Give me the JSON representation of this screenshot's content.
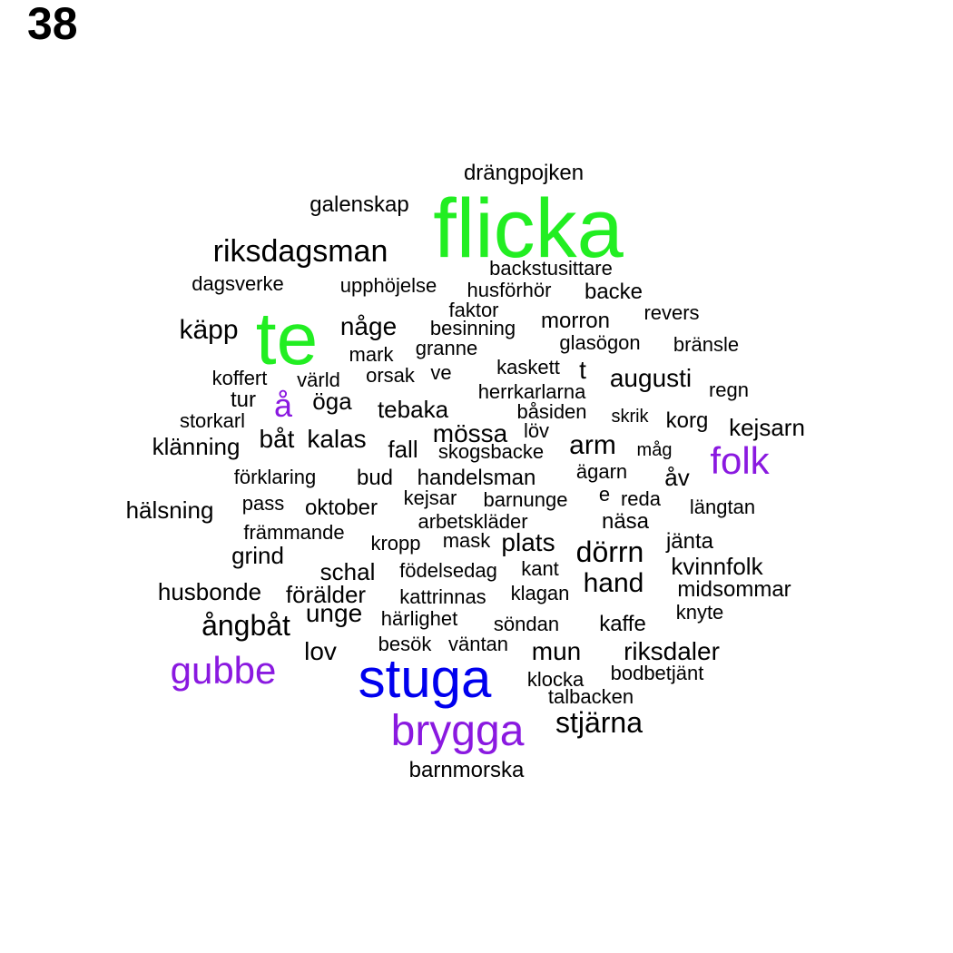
{
  "page_number": "38",
  "colors": {
    "green": "#22ee22",
    "blue": "#0000ee",
    "purple": "#8a19e0",
    "black": "#000000"
  },
  "words": [
    {
      "text": "flicka",
      "color": "green"
    },
    {
      "text": "te",
      "color": "green"
    },
    {
      "text": "stuga",
      "color": "blue"
    },
    {
      "text": "brygga",
      "color": "purple"
    },
    {
      "text": "gubbe",
      "color": "purple"
    },
    {
      "text": "folk",
      "color": "purple"
    },
    {
      "text": "å",
      "color": "purple"
    },
    {
      "text": "drängpojken",
      "color": "black"
    },
    {
      "text": "galenskap",
      "color": "black"
    },
    {
      "text": "riksdagsman",
      "color": "black"
    },
    {
      "text": "backstusittare",
      "color": "black"
    },
    {
      "text": "dagsverke",
      "color": "black"
    },
    {
      "text": "upphöjelse",
      "color": "black"
    },
    {
      "text": "husförhör",
      "color": "black"
    },
    {
      "text": "backe",
      "color": "black"
    },
    {
      "text": "faktor",
      "color": "black"
    },
    {
      "text": "revers",
      "color": "black"
    },
    {
      "text": "käpp",
      "color": "black"
    },
    {
      "text": "någe",
      "color": "black"
    },
    {
      "text": "besinning",
      "color": "black"
    },
    {
      "text": "morron",
      "color": "black"
    },
    {
      "text": "mark",
      "color": "black"
    },
    {
      "text": "granne",
      "color": "black"
    },
    {
      "text": "glasögon",
      "color": "black"
    },
    {
      "text": "bränsle",
      "color": "black"
    },
    {
      "text": "koffert",
      "color": "black"
    },
    {
      "text": "värld",
      "color": "black"
    },
    {
      "text": "orsak",
      "color": "black"
    },
    {
      "text": "ve",
      "color": "black"
    },
    {
      "text": "kaskett",
      "color": "black"
    },
    {
      "text": "t",
      "color": "black"
    },
    {
      "text": "augusti",
      "color": "black"
    },
    {
      "text": "tur",
      "color": "black"
    },
    {
      "text": "öga",
      "color": "black"
    },
    {
      "text": "herrkarlarna",
      "color": "black"
    },
    {
      "text": "regn",
      "color": "black"
    },
    {
      "text": "tebaka",
      "color": "black"
    },
    {
      "text": "båsiden",
      "color": "black"
    },
    {
      "text": "skrik",
      "color": "black"
    },
    {
      "text": "korg",
      "color": "black"
    },
    {
      "text": "storkarl",
      "color": "black"
    },
    {
      "text": "kejsarn",
      "color": "black"
    },
    {
      "text": "mössa",
      "color": "black"
    },
    {
      "text": "löv",
      "color": "black"
    },
    {
      "text": "båt",
      "color": "black"
    },
    {
      "text": "kalas",
      "color": "black"
    },
    {
      "text": "klänning",
      "color": "black"
    },
    {
      "text": "arm",
      "color": "black"
    },
    {
      "text": "fall",
      "color": "black"
    },
    {
      "text": "skogsbacke",
      "color": "black"
    },
    {
      "text": "måg",
      "color": "black"
    },
    {
      "text": "förklaring",
      "color": "black"
    },
    {
      "text": "bud",
      "color": "black"
    },
    {
      "text": "handelsman",
      "color": "black"
    },
    {
      "text": "ägarn",
      "color": "black"
    },
    {
      "text": "åv",
      "color": "black"
    },
    {
      "text": "hälsning",
      "color": "black"
    },
    {
      "text": "pass",
      "color": "black"
    },
    {
      "text": "oktober",
      "color": "black"
    },
    {
      "text": "kejsar",
      "color": "black"
    },
    {
      "text": "barnunge",
      "color": "black"
    },
    {
      "text": "e",
      "color": "black"
    },
    {
      "text": "reda",
      "color": "black"
    },
    {
      "text": "längtan",
      "color": "black"
    },
    {
      "text": "främmande",
      "color": "black"
    },
    {
      "text": "arbetskläder",
      "color": "black"
    },
    {
      "text": "näsa",
      "color": "black"
    },
    {
      "text": "grind",
      "color": "black"
    },
    {
      "text": "kropp",
      "color": "black"
    },
    {
      "text": "mask",
      "color": "black"
    },
    {
      "text": "plats",
      "color": "black"
    },
    {
      "text": "dörrn",
      "color": "black"
    },
    {
      "text": "jänta",
      "color": "black"
    },
    {
      "text": "schal",
      "color": "black"
    },
    {
      "text": "födelsedag",
      "color": "black"
    },
    {
      "text": "kant",
      "color": "black"
    },
    {
      "text": "kvinnfolk",
      "color": "black"
    },
    {
      "text": "husbonde",
      "color": "black"
    },
    {
      "text": "förälder",
      "color": "black"
    },
    {
      "text": "kattrinnas",
      "color": "black"
    },
    {
      "text": "klagan",
      "color": "black"
    },
    {
      "text": "hand",
      "color": "black"
    },
    {
      "text": "midsommar",
      "color": "black"
    },
    {
      "text": "ångbåt",
      "color": "black"
    },
    {
      "text": "unge",
      "color": "black"
    },
    {
      "text": "härlighet",
      "color": "black"
    },
    {
      "text": "söndan",
      "color": "black"
    },
    {
      "text": "kaffe",
      "color": "black"
    },
    {
      "text": "knyte",
      "color": "black"
    },
    {
      "text": "lov",
      "color": "black"
    },
    {
      "text": "besök",
      "color": "black"
    },
    {
      "text": "väntan",
      "color": "black"
    },
    {
      "text": "mun",
      "color": "black"
    },
    {
      "text": "riksdaler",
      "color": "black"
    },
    {
      "text": "klocka",
      "color": "black"
    },
    {
      "text": "bodbetjänt",
      "color": "black"
    },
    {
      "text": "talbacken",
      "color": "black"
    },
    {
      "text": "stjärna",
      "color": "black"
    },
    {
      "text": "barnmorska",
      "color": "black"
    }
  ]
}
